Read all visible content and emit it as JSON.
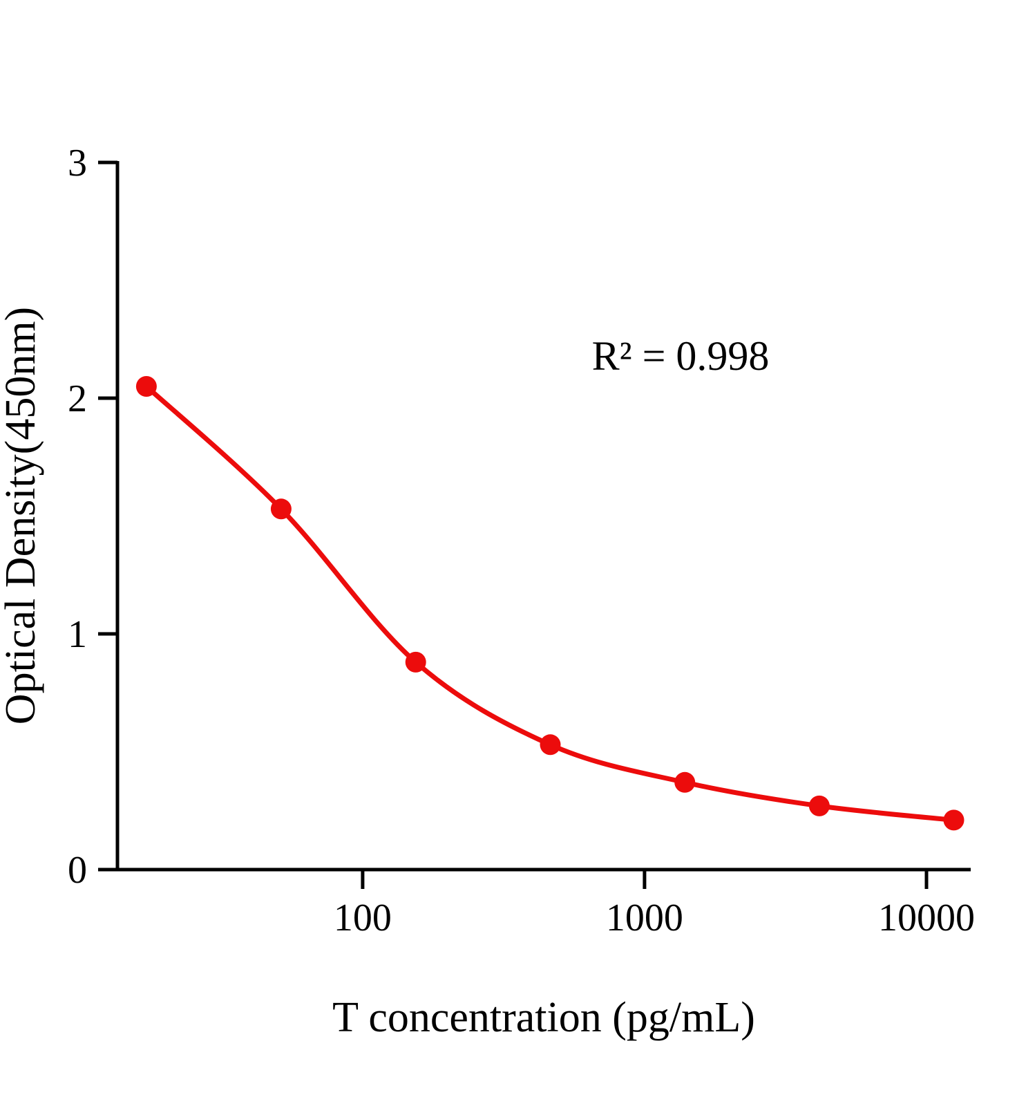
{
  "chart_data": {
    "type": "scatter",
    "curve": "4pl-fit-line",
    "x": [
      17.1,
      51.4,
      154.3,
      463,
      1389,
      4167,
      12500
    ],
    "y": [
      2.05,
      1.53,
      0.88,
      0.53,
      0.37,
      0.27,
      0.21
    ],
    "title": "",
    "xlabel": "T concentration (pg/mL)",
    "ylabel": "Optical Density(450nm)",
    "annotation": "R² = 0.998",
    "xscale": "log",
    "yscale": "linear",
    "xlim": [
      13.5,
      14350
    ],
    "ylim": [
      0,
      3
    ],
    "x_ticks": [
      100,
      1000,
      10000
    ],
    "y_ticks": [
      0,
      1,
      2,
      3
    ],
    "grid": false,
    "legend": null,
    "line_color": "#ec0c0c",
    "marker_color": "#ec0c0c",
    "axis_color": "#000000",
    "marker_radius": 15,
    "line_width": 7,
    "axis_width": 5
  }
}
